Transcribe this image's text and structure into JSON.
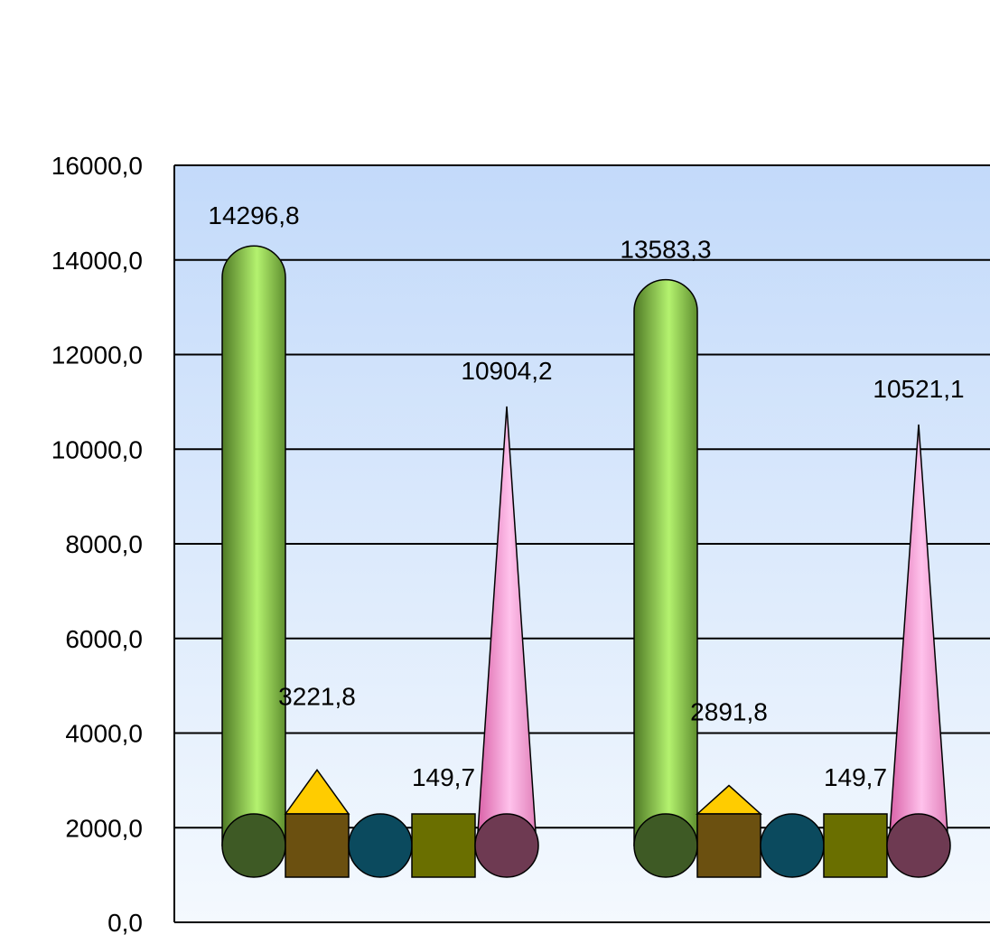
{
  "chart_data": {
    "type": "bar",
    "title": "",
    "xlabel": "",
    "ylabel": "",
    "ylim": [
      0,
      16000
    ],
    "y_ticks": [
      "0,0",
      "2000,0",
      "4000,0",
      "6000,0",
      "8000,0",
      "10000,0",
      "12000,0",
      "14000,0",
      "16000,0"
    ],
    "grid": true,
    "categories": [
      "",
      ""
    ],
    "series": [
      {
        "values": [
          14296.8,
          13583.3
        ],
        "labels": [
          "14296,8",
          "13583,3"
        ],
        "shape": "cylinder",
        "color": "#8ecb4a",
        "base_color": "#3e5a25"
      },
      {
        "values": [
          3221.8,
          2891.8
        ],
        "labels": [
          "3221,8",
          "2891,8"
        ],
        "shape": "pyramid",
        "color": "#ffcc00",
        "base_color": "#6b5010"
      },
      {
        "values": [
          149.7,
          149.7
        ],
        "labels": [
          "",
          ""
        ],
        "shape": "sphere",
        "color": "#0b4a5e",
        "base_color": "#0b4a5e"
      },
      {
        "values": [
          149.7,
          149.7
        ],
        "labels": [
          "149,7",
          "149,7"
        ],
        "shape": "box",
        "color": "#6a6f00",
        "base_color": "#6a6f00"
      },
      {
        "values": [
          10904.2,
          10521.1
        ],
        "labels": [
          "10904,2",
          "10521,1"
        ],
        "shape": "cone",
        "color": "#f59dd4",
        "base_color": "#6e3a52"
      }
    ]
  }
}
